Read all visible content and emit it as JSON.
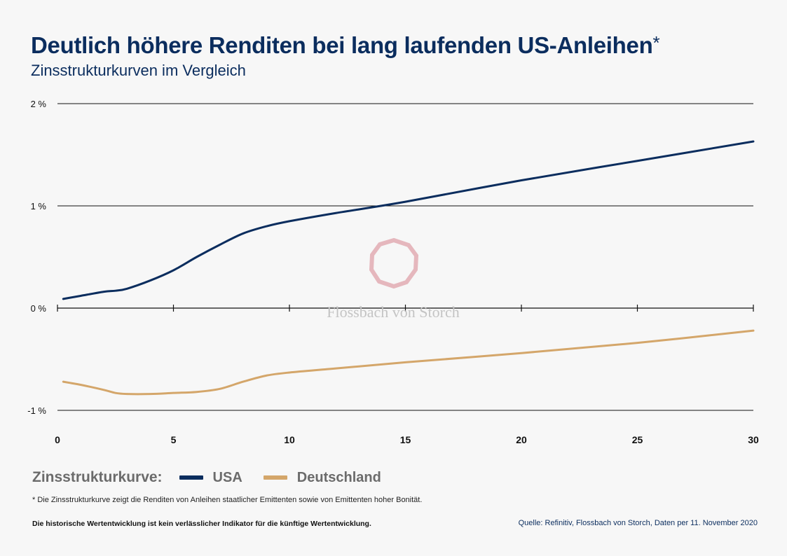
{
  "header": {
    "title": "Deutlich höhere Renditen bei lang laufenden US-Anleihen",
    "title_mark": "*",
    "subtitle": "Zinsstrukturkurven  im Vergleich"
  },
  "chart_data": {
    "type": "line",
    "xlim": [
      0,
      30
    ],
    "ylim": [
      -1,
      2
    ],
    "x_ticks": [
      0,
      5,
      10,
      15,
      20,
      25,
      30
    ],
    "x_tick_labels": [
      "0",
      "5",
      "10",
      "15",
      "20",
      "25",
      "30"
    ],
    "y_ticks": [
      -1,
      0,
      1,
      2
    ],
    "y_tick_labels": [
      "-1 %",
      "0 %",
      "1 %",
      "2 %"
    ],
    "grid": true,
    "series": [
      {
        "name": "USA",
        "color": "#0b2d5e",
        "x": [
          0.25,
          0.5,
          1,
          2,
          2.5,
          3,
          4,
          5,
          6,
          7,
          8,
          9,
          10,
          12,
          15,
          20,
          25,
          30
        ],
        "y": [
          0.09,
          0.1,
          0.12,
          0.16,
          0.17,
          0.19,
          0.27,
          0.37,
          0.5,
          0.62,
          0.73,
          0.8,
          0.85,
          0.93,
          1.04,
          1.25,
          1.44,
          1.63
        ]
      },
      {
        "name": "Deutschland",
        "color": "#d4a66a",
        "x": [
          0.25,
          0.5,
          1,
          2,
          2.5,
          3,
          4,
          5,
          6,
          7,
          8,
          9,
          10,
          12,
          15,
          20,
          25,
          30
        ],
        "y": [
          -0.72,
          -0.73,
          -0.75,
          -0.8,
          -0.83,
          -0.84,
          -0.84,
          -0.83,
          -0.82,
          -0.79,
          -0.72,
          -0.66,
          -0.63,
          -0.59,
          -0.53,
          -0.44,
          -0.34,
          -0.22
        ]
      }
    ]
  },
  "watermark": {
    "text": "Flossbach von Storch"
  },
  "legend": {
    "title": "Zinsstrukturkurve:",
    "items": [
      {
        "label": "USA",
        "color": "#0b2d5e"
      },
      {
        "label": "Deutschland",
        "color": "#d4a66a"
      }
    ]
  },
  "footnote": "*  Die Zinsstrukturkurve zeigt die Renditen von Anleihen staatlicher Emittenten sowie von Emittenten hoher Bonität.",
  "disclaimer": "Die historische Wertentwicklung ist kein verlässlicher Indikator für die künftige Wertentwicklung.",
  "source": "Quelle: Refinitiv, Flossbach von Storch, Daten per 11. November 2020"
}
